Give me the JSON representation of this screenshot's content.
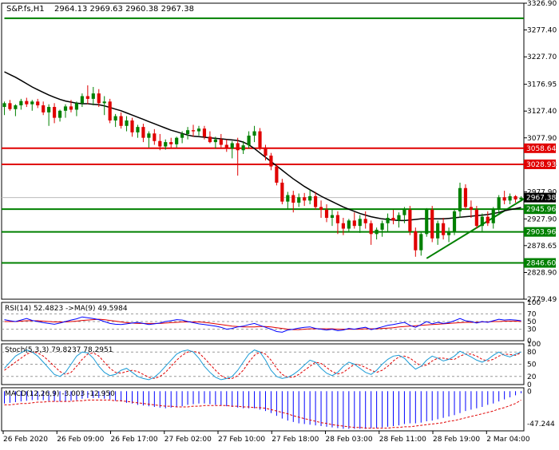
{
  "chart_data": {
    "type": "candlestick",
    "symbol": "S&P.fs,H1",
    "ohlc_header": "2964.13 2969.63 2960.38 2967.38",
    "price_ylim": [
      2779.49,
      3326.9
    ],
    "price_ticks": [
      "3326.90",
      "3277.40",
      "3227.70",
      "3176.95",
      "3127.40",
      "3077.90",
      "3028.93",
      "2977.90",
      "2927.90",
      "2878.65",
      "2828.90",
      "2779.49"
    ],
    "last_price_label": "2967.38",
    "horizontal_levels": [
      {
        "value": 3058.64,
        "label": "3058.64",
        "color": "#e00000"
      },
      {
        "value": 3028.93,
        "label": "3028.93",
        "color": "#e00000"
      },
      {
        "value": 2945.96,
        "label": "2945.96",
        "color": "#008000"
      },
      {
        "value": 2903.96,
        "label": "2903.96",
        "color": "#008000"
      },
      {
        "value": 2846.6,
        "label": "2846.60",
        "color": "#008000"
      }
    ],
    "trendlines": [
      {
        "from": [
          0,
          3299
        ],
        "to": [
          98,
          3299
        ],
        "color": "#008000",
        "note": "upper channel"
      },
      {
        "from": [
          76,
          2855
        ],
        "to": [
          100,
          2965
        ],
        "color": "#008000",
        "note": "rising support"
      }
    ],
    "candles": [
      [
        3135,
        3145,
        3120,
        3142
      ],
      [
        3142,
        3148,
        3128,
        3131
      ],
      [
        3131,
        3140,
        3118,
        3138
      ],
      [
        3138,
        3150,
        3130,
        3146
      ],
      [
        3146,
        3152,
        3135,
        3140
      ],
      [
        3140,
        3148,
        3128,
        3145
      ],
      [
        3145,
        3150,
        3133,
        3138
      ],
      [
        3138,
        3145,
        3120,
        3125
      ],
      [
        3125,
        3140,
        3100,
        3135
      ],
      [
        3135,
        3142,
        3105,
        3115
      ],
      [
        3115,
        3130,
        3108,
        3128
      ],
      [
        3128,
        3140,
        3115,
        3136
      ],
      [
        3136,
        3148,
        3125,
        3130
      ],
      [
        3130,
        3145,
        3118,
        3142
      ],
      [
        3142,
        3160,
        3135,
        3155
      ],
      [
        3155,
        3175,
        3140,
        3150
      ],
      [
        3150,
        3172,
        3138,
        3160
      ],
      [
        3160,
        3168,
        3135,
        3142
      ],
      [
        3142,
        3155,
        3120,
        3145
      ],
      [
        3145,
        3150,
        3105,
        3110
      ],
      [
        3110,
        3122,
        3098,
        3118
      ],
      [
        3118,
        3125,
        3095,
        3100
      ],
      [
        3100,
        3118,
        3090,
        3110
      ],
      [
        3110,
        3115,
        3080,
        3088
      ],
      [
        3088,
        3102,
        3078,
        3098
      ],
      [
        3098,
        3104,
        3070,
        3078
      ],
      [
        3078,
        3090,
        3060,
        3086
      ],
      [
        3086,
        3094,
        3065,
        3072
      ],
      [
        3072,
        3085,
        3055,
        3062
      ],
      [
        3062,
        3075,
        3056,
        3070
      ],
      [
        3070,
        3078,
        3060,
        3066
      ],
      [
        3066,
        3080,
        3060,
        3078
      ],
      [
        3078,
        3090,
        3068,
        3085
      ],
      [
        3085,
        3098,
        3075,
        3092
      ],
      [
        3092,
        3102,
        3080,
        3090
      ],
      [
        3090,
        3100,
        3082,
        3095
      ],
      [
        3095,
        3100,
        3075,
        3080
      ],
      [
        3080,
        3090,
        3068,
        3070
      ],
      [
        3070,
        3080,
        3058,
        3075
      ],
      [
        3075,
        3085,
        3060,
        3065
      ],
      [
        3065,
        3075,
        3052,
        3058
      ],
      [
        3058,
        3072,
        3040,
        3068
      ],
      [
        3068,
        3078,
        3008,
        3055
      ],
      [
        3055,
        3072,
        3048,
        3064
      ],
      [
        3064,
        3090,
        3058,
        3082
      ],
      [
        3082,
        3100,
        3070,
        3090
      ],
      [
        3090,
        3096,
        3055,
        3060
      ],
      [
        3060,
        3065,
        3036,
        3045
      ],
      [
        3045,
        3050,
        3018,
        3025
      ],
      [
        3025,
        3030,
        2990,
        2995
      ],
      [
        2995,
        3002,
        2955,
        2960
      ],
      [
        2960,
        2978,
        2945,
        2972
      ],
      [
        2972,
        2980,
        2940,
        2958
      ],
      [
        2958,
        2975,
        2950,
        2968
      ],
      [
        2968,
        2976,
        2952,
        2962
      ],
      [
        2962,
        2982,
        2955,
        2970
      ],
      [
        2970,
        2978,
        2945,
        2950
      ],
      [
        2950,
        2962,
        2930,
        2945
      ],
      [
        2945,
        2955,
        2922,
        2930
      ],
      [
        2930,
        2945,
        2915,
        2935
      ],
      [
        2935,
        2942,
        2900,
        2920
      ],
      [
        2920,
        2930,
        2898,
        2910
      ],
      [
        2910,
        2928,
        2905,
        2925
      ],
      [
        2925,
        2940,
        2910,
        2915
      ],
      [
        2915,
        2935,
        2902,
        2928
      ],
      [
        2928,
        2942,
        2910,
        2920
      ],
      [
        2920,
        2925,
        2880,
        2900
      ],
      [
        2900,
        2912,
        2890,
        2908
      ],
      [
        2908,
        2925,
        2895,
        2920
      ],
      [
        2920,
        2938,
        2905,
        2930
      ],
      [
        2930,
        2945,
        2918,
        2925
      ],
      [
        2925,
        2940,
        2912,
        2935
      ],
      [
        2935,
        2950,
        2920,
        2945
      ],
      [
        2945,
        2952,
        2898,
        2905
      ],
      [
        2905,
        2912,
        2858,
        2870
      ],
      [
        2870,
        2905,
        2860,
        2900
      ],
      [
        2900,
        2948,
        2895,
        2945
      ],
      [
        2945,
        2952,
        2885,
        2892
      ],
      [
        2892,
        2925,
        2880,
        2920
      ],
      [
        2920,
        2930,
        2890,
        2898
      ],
      [
        2898,
        2912,
        2885,
        2905
      ],
      [
        2905,
        2945,
        2898,
        2942
      ],
      [
        2942,
        2995,
        2930,
        2985
      ],
      [
        2985,
        2992,
        2945,
        2950
      ],
      [
        2950,
        2962,
        2930,
        2945
      ],
      [
        2945,
        2952,
        2910,
        2915
      ],
      [
        2915,
        2938,
        2905,
        2932
      ],
      [
        2932,
        2942,
        2915,
        2920
      ],
      [
        2920,
        2950,
        2910,
        2945
      ],
      [
        2945,
        2972,
        2935,
        2968
      ],
      [
        2968,
        2980,
        2955,
        2962
      ],
      [
        2962,
        2975,
        2955,
        2970
      ],
      [
        2970,
        2972,
        2958,
        2964
      ],
      [
        2964,
        2970,
        2960,
        2967
      ]
    ],
    "moving_average": [
      3200,
      3195,
      3190,
      3184,
      3178,
      3172,
      3167,
      3162,
      3157,
      3153,
      3149,
      3146,
      3144,
      3142,
      3141,
      3141,
      3140,
      3139,
      3137,
      3134,
      3131,
      3128,
      3124,
      3120,
      3116,
      3112,
      3108,
      3104,
      3100,
      3096,
      3092,
      3089,
      3086,
      3083,
      3081,
      3080,
      3079,
      3078,
      3077,
      3076,
      3075,
      3074,
      3073,
      3070,
      3065,
      3058,
      3050,
      3042,
      3034,
      3026,
      3018,
      3010,
      3002,
      2995,
      2988,
      2982,
      2976,
      2970,
      2965,
      2960,
      2955,
      2950,
      2946,
      2942,
      2938,
      2935,
      2932,
      2930,
      2928,
      2927,
      2926,
      2925,
      2925,
      2926,
      2927,
      2928,
      2928,
      2928,
      2928,
      2928,
      2929,
      2930,
      2931,
      2932,
      2933,
      2934,
      2935,
      2936,
      2938,
      2940,
      2943,
      2945,
      2947,
      2949
    ],
    "rsi": {
      "label": "RSI(14) 52.4823 ->MA(9) 49.5984",
      "ylim": [
        0,
        100
      ],
      "ticks": [
        "100",
        "70",
        "50",
        "30",
        "0"
      ],
      "values": [
        55,
        52,
        50,
        54,
        58,
        53,
        50,
        47,
        45,
        43,
        46,
        50,
        54,
        57,
        62,
        60,
        58,
        55,
        50,
        45,
        43,
        42,
        44,
        46,
        48,
        45,
        42,
        44,
        46,
        50,
        52,
        55,
        54,
        50,
        47,
        44,
        42,
        40,
        38,
        35,
        30,
        32,
        36,
        38,
        42,
        45,
        40,
        35,
        30,
        24,
        22,
        28,
        30,
        33,
        35,
        36,
        32,
        30,
        28,
        30,
        26,
        28,
        32,
        30,
        33,
        35,
        29,
        32,
        36,
        40,
        42,
        45,
        48,
        40,
        35,
        42,
        50,
        44,
        48,
        45,
        47,
        52,
        58,
        52,
        50,
        46,
        50,
        48,
        52,
        56,
        54,
        55,
        54,
        52
      ],
      "ma": [
        50,
        50,
        50,
        51,
        52,
        52,
        52,
        51,
        50,
        49,
        49,
        49,
        50,
        51,
        53,
        54,
        55,
        56,
        55,
        53,
        51,
        49,
        47,
        46,
        45,
        45,
        45,
        45,
        45,
        46,
        47,
        48,
        49,
        49,
        49,
        49,
        48,
        46,
        44,
        42,
        40,
        38,
        37,
        36,
        36,
        36,
        37,
        37,
        36,
        34,
        32,
        30,
        29,
        29,
        30,
        31,
        31,
        31,
        31,
        31,
        30,
        30,
        30,
        30,
        30,
        31,
        31,
        31,
        32,
        33,
        34,
        36,
        37,
        38,
        39,
        40,
        41,
        42,
        43,
        44,
        45,
        46,
        47,
        48,
        48,
        48,
        49,
        49,
        50,
        50,
        51,
        51,
        51,
        50
      ]
    },
    "stochastic": {
      "label": "Stoch(5,3,3) 79.8237 78.2951",
      "ylim": [
        0,
        100
      ],
      "ticks": [
        "100",
        "80",
        "50",
        "20",
        "0"
      ],
      "k": [
        40,
        55,
        70,
        78,
        85,
        80,
        70,
        55,
        40,
        25,
        20,
        30,
        50,
        70,
        80,
        78,
        65,
        45,
        30,
        22,
        25,
        35,
        40,
        30,
        20,
        15,
        12,
        18,
        30,
        45,
        60,
        75,
        82,
        85,
        80,
        65,
        45,
        30,
        18,
        12,
        15,
        20,
        35,
        55,
        75,
        85,
        80,
        60,
        35,
        20,
        15,
        18,
        25,
        35,
        48,
        60,
        55,
        40,
        28,
        22,
        30,
        45,
        55,
        50,
        40,
        30,
        25,
        35,
        50,
        62,
        70,
        72,
        65,
        50,
        38,
        45,
        60,
        70,
        65,
        58,
        62,
        70,
        82,
        75,
        68,
        60,
        55,
        62,
        72,
        80,
        72,
        68,
        75,
        80
      ],
      "d": [
        35,
        45,
        55,
        65,
        75,
        80,
        78,
        70,
        58,
        45,
        32,
        25,
        30,
        45,
        62,
        75,
        78,
        70,
        55,
        40,
        30,
        28,
        32,
        35,
        32,
        25,
        18,
        15,
        20,
        30,
        45,
        60,
        72,
        80,
        82,
        78,
        65,
        50,
        35,
        22,
        15,
        15,
        22,
        35,
        55,
        72,
        80,
        75,
        60,
        40,
        25,
        18,
        18,
        25,
        35,
        45,
        55,
        52,
        42,
        32,
        26,
        30,
        40,
        50,
        48,
        42,
        35,
        30,
        35,
        45,
        58,
        68,
        70,
        65,
        55,
        45,
        48,
        58,
        65,
        65,
        62,
        62,
        70,
        75,
        75,
        70,
        62,
        58,
        62,
        70,
        75,
        74,
        72,
        78
      ]
    },
    "macd": {
      "label": "MACD(12,26,9) -3.003 -12.950",
      "ylim": [
        -58,
        5
      ],
      "ticks": [
        "0",
        "-47.244"
      ],
      "histogram": [
        -18,
        -17,
        -16,
        -15,
        -14,
        -13,
        -13,
        -13,
        -14,
        -15,
        -15,
        -15,
        -14,
        -13,
        -11,
        -10,
        -10,
        -10,
        -11,
        -12,
        -14,
        -15,
        -17,
        -18,
        -20,
        -21,
        -22,
        -23,
        -24,
        -25,
        -24,
        -23,
        -22,
        -20,
        -19,
        -18,
        -18,
        -19,
        -20,
        -21,
        -22,
        -23,
        -24,
        -25,
        -25,
        -25,
        -27,
        -29,
        -32,
        -36,
        -40,
        -43,
        -45,
        -47,
        -48,
        -49,
        -50,
        -51,
        -52,
        -53,
        -54,
        -55,
        -55,
        -55,
        -55,
        -55,
        -54,
        -54,
        -53,
        -52,
        -51,
        -50,
        -48,
        -47,
        -47,
        -46,
        -44,
        -43,
        -41,
        -39,
        -37,
        -35,
        -32,
        -29,
        -27,
        -25,
        -23,
        -20,
        -18,
        -15,
        -12,
        -9,
        -6,
        -3
      ],
      "signal": [
        -20,
        -20,
        -19,
        -18,
        -18,
        -17,
        -16,
        -16,
        -15,
        -15,
        -15,
        -15,
        -15,
        -14,
        -14,
        -13,
        -13,
        -13,
        -13,
        -13,
        -14,
        -14,
        -15,
        -16,
        -17,
        -18,
        -19,
        -20,
        -21,
        -22,
        -22,
        -23,
        -23,
        -23,
        -22,
        -22,
        -21,
        -21,
        -21,
        -21,
        -21,
        -22,
        -22,
        -23,
        -23,
        -24,
        -24,
        -25,
        -27,
        -29,
        -31,
        -33,
        -36,
        -38,
        -40,
        -42,
        -44,
        -46,
        -47,
        -49,
        -50,
        -51,
        -52,
        -53,
        -53,
        -54,
        -54,
        -54,
        -54,
        -54,
        -53,
        -53,
        -52,
        -52,
        -51,
        -50,
        -49,
        -48,
        -47,
        -46,
        -44,
        -43,
        -41,
        -39,
        -37,
        -35,
        -33,
        -31,
        -29,
        -26,
        -24,
        -21,
        -18,
        -13
      ]
    },
    "x_ticks": [
      "26 Feb 2020",
      "26 Feb 09:00",
      "26 Feb 17:00",
      "27 Feb 02:00",
      "27 Feb 10:00",
      "27 Feb 18:00",
      "28 Feb 03:00",
      "28 Feb 11:00",
      "28 Feb 19:00",
      "2 Mar 04:00"
    ],
    "colors": {
      "bull": "#008000",
      "bear": "#e00000",
      "ma": "#000000",
      "rsi": "#0000ff",
      "rsi_ma": "#e00000",
      "stoch_k": "#1a9bd6",
      "stoch_d": "#e00000",
      "macd_hist": "#0000ff",
      "macd_signal": "#e00000"
    }
  }
}
